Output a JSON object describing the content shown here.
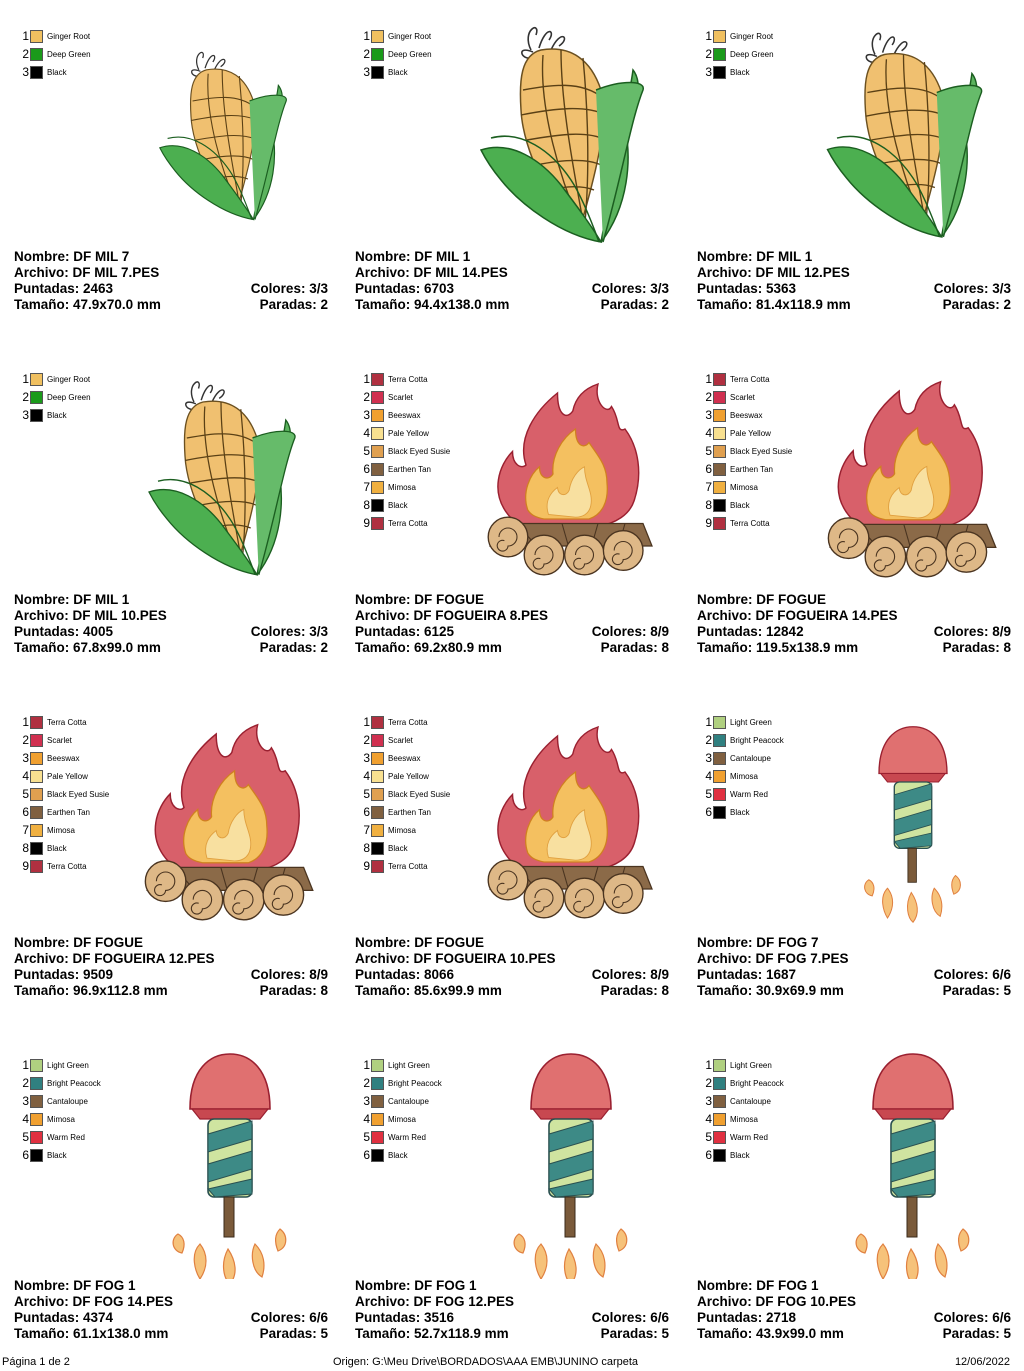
{
  "labels": {
    "nombre": "Nombre:",
    "archivo": "Archivo:",
    "puntadas": "Puntadas:",
    "tamano": "Tamaño:",
    "colores": "Colores:",
    "paradas": "Paradas:"
  },
  "designs": [
    {
      "type": "corn",
      "nombre": "DF MIL 7",
      "archivo": "DF MIL 7.PES",
      "puntadas": "2463",
      "colores": "3/3",
      "tamano": "47.9x70.0 mm",
      "paradas": "2",
      "scale": 0.78,
      "swatches": [
        {
          "n": "1",
          "name": "Ginger Root",
          "color": "#f0c060"
        },
        {
          "n": "2",
          "name": "Deep Green",
          "color": "#1a9a1a"
        },
        {
          "n": "3",
          "name": "Black",
          "color": "#000000"
        }
      ]
    },
    {
      "type": "corn",
      "nombre": "DF MIL 1",
      "archivo": "DF MIL 14.PES",
      "puntadas": "6703",
      "colores": "3/3",
      "tamano": "94.4x138.0 mm",
      "paradas": "2",
      "scale": 1.0,
      "swatches": [
        {
          "n": "1",
          "name": "Ginger Root",
          "color": "#f0c060"
        },
        {
          "n": "2",
          "name": "Deep Green",
          "color": "#1a9a1a"
        },
        {
          "n": "3",
          "name": "Black",
          "color": "#000000"
        }
      ]
    },
    {
      "type": "corn",
      "nombre": "DF MIL 1",
      "archivo": "DF MIL 12.PES",
      "puntadas": "5363",
      "colores": "3/3",
      "tamano": "81.4x118.9 mm",
      "paradas": "2",
      "scale": 0.95,
      "swatches": [
        {
          "n": "1",
          "name": "Ginger Root",
          "color": "#f0c060"
        },
        {
          "n": "2",
          "name": "Deep Green",
          "color": "#1a9a1a"
        },
        {
          "n": "3",
          "name": "Black",
          "color": "#000000"
        }
      ]
    },
    {
      "type": "corn",
      "nombre": "DF MIL 1",
      "archivo": "DF MIL 10.PES",
      "puntadas": "4005",
      "colores": "3/3",
      "tamano": "67.8x99.0 mm",
      "paradas": "2",
      "scale": 0.9,
      "swatches": [
        {
          "n": "1",
          "name": "Ginger Root",
          "color": "#f0c060"
        },
        {
          "n": "2",
          "name": "Deep Green",
          "color": "#1a9a1a"
        },
        {
          "n": "3",
          "name": "Black",
          "color": "#000000"
        }
      ]
    },
    {
      "type": "fire",
      "nombre": "DF FOGUE",
      "archivo": "DF FOGUEIRA 8.PES",
      "puntadas": "6125",
      "colores": "8/9",
      "tamano": "69.2x80.9 mm",
      "paradas": "8",
      "scale": 0.9,
      "swatches": [
        {
          "n": "1",
          "name": "Terra Cotta",
          "color": "#b03040"
        },
        {
          "n": "2",
          "name": "Scarlet",
          "color": "#d03050"
        },
        {
          "n": "3",
          "name": "Beeswax",
          "color": "#f0a030"
        },
        {
          "n": "4",
          "name": "Pale Yellow",
          "color": "#f8e090"
        },
        {
          "n": "5",
          "name": "Black Eyed Susie",
          "color": "#e0a050"
        },
        {
          "n": "6",
          "name": "Earthen Tan",
          "color": "#806040"
        },
        {
          "n": "7",
          "name": "Mimosa",
          "color": "#f0b040"
        },
        {
          "n": "8",
          "name": "Black",
          "color": "#000000"
        },
        {
          "n": "9",
          "name": "Terra Cotta",
          "color": "#b03040"
        }
      ]
    },
    {
      "type": "fire",
      "nombre": "DF FOGUE",
      "archivo": "DF FOGUEIRA 14.PES",
      "puntadas": "12842",
      "colores": "8/9",
      "tamano": "119.5x138.9 mm",
      "paradas": "8",
      "scale": 0.92,
      "swatches": [
        {
          "n": "1",
          "name": "Terra Cotta",
          "color": "#b03040"
        },
        {
          "n": "2",
          "name": "Scarlet",
          "color": "#d03050"
        },
        {
          "n": "3",
          "name": "Beeswax",
          "color": "#f0a030"
        },
        {
          "n": "4",
          "name": "Pale Yellow",
          "color": "#f8e090"
        },
        {
          "n": "5",
          "name": "Black Eyed Susie",
          "color": "#e0a050"
        },
        {
          "n": "6",
          "name": "Earthen Tan",
          "color": "#806040"
        },
        {
          "n": "7",
          "name": "Mimosa",
          "color": "#f0b040"
        },
        {
          "n": "8",
          "name": "Black",
          "color": "#000000"
        },
        {
          "n": "9",
          "name": "Terra Cotta",
          "color": "#b03040"
        }
      ]
    },
    {
      "type": "fire",
      "nombre": "DF FOGUE",
      "archivo": "DF FOGUEIRA 12.PES",
      "puntadas": "9509",
      "colores": "8/9",
      "tamano": "96.9x112.8 mm",
      "paradas": "8",
      "scale": 0.92,
      "swatches": [
        {
          "n": "1",
          "name": "Terra Cotta",
          "color": "#b03040"
        },
        {
          "n": "2",
          "name": "Scarlet",
          "color": "#d03050"
        },
        {
          "n": "3",
          "name": "Beeswax",
          "color": "#f0a030"
        },
        {
          "n": "4",
          "name": "Pale Yellow",
          "color": "#f8e090"
        },
        {
          "n": "5",
          "name": "Black Eyed Susie",
          "color": "#e0a050"
        },
        {
          "n": "6",
          "name": "Earthen Tan",
          "color": "#806040"
        },
        {
          "n": "7",
          "name": "Mimosa",
          "color": "#f0b040"
        },
        {
          "n": "8",
          "name": "Black",
          "color": "#000000"
        },
        {
          "n": "9",
          "name": "Terra Cotta",
          "color": "#b03040"
        }
      ]
    },
    {
      "type": "fire",
      "nombre": "DF FOGUE",
      "archivo": "DF FOGUEIRA 10.PES",
      "puntadas": "8066",
      "colores": "8/9",
      "tamano": "85.6x99.9 mm",
      "paradas": "8",
      "scale": 0.9,
      "swatches": [
        {
          "n": "1",
          "name": "Terra Cotta",
          "color": "#b03040"
        },
        {
          "n": "2",
          "name": "Scarlet",
          "color": "#d03050"
        },
        {
          "n": "3",
          "name": "Beeswax",
          "color": "#f0a030"
        },
        {
          "n": "4",
          "name": "Pale Yellow",
          "color": "#f8e090"
        },
        {
          "n": "5",
          "name": "Black Eyed Susie",
          "color": "#e0a050"
        },
        {
          "n": "6",
          "name": "Earthen Tan",
          "color": "#806040"
        },
        {
          "n": "7",
          "name": "Mimosa",
          "color": "#f0b040"
        },
        {
          "n": "8",
          "name": "Black",
          "color": "#000000"
        },
        {
          "n": "9",
          "name": "Terra Cotta",
          "color": "#b03040"
        }
      ]
    },
    {
      "type": "rocket",
      "nombre": "DF FOG 7",
      "archivo": "DF FOG 7.PES",
      "puntadas": "1687",
      "colores": "6/6",
      "tamano": "30.9x69.9 mm",
      "paradas": "5",
      "scale": 0.85,
      "swatches": [
        {
          "n": "1",
          "name": "Light Green",
          "color": "#b0d080"
        },
        {
          "n": "2",
          "name": "Bright Peacock",
          "color": "#308080"
        },
        {
          "n": "3",
          "name": "Cantaloupe",
          "color": "#806040"
        },
        {
          "n": "4",
          "name": "Mimosa",
          "color": "#f0a030"
        },
        {
          "n": "5",
          "name": "Warm Red",
          "color": "#e03040"
        },
        {
          "n": "6",
          "name": "Black",
          "color": "#000000"
        }
      ]
    },
    {
      "type": "rocket",
      "nombre": "DF FOG 1",
      "archivo": "DF FOG 14.PES",
      "puntadas": "4374",
      "colores": "6/6",
      "tamano": "61.1x138.0 mm",
      "paradas": "5",
      "scale": 1.0,
      "swatches": [
        {
          "n": "1",
          "name": "Light Green",
          "color": "#b0d080"
        },
        {
          "n": "2",
          "name": "Bright Peacock",
          "color": "#308080"
        },
        {
          "n": "3",
          "name": "Cantaloupe",
          "color": "#806040"
        },
        {
          "n": "4",
          "name": "Mimosa",
          "color": "#f0a030"
        },
        {
          "n": "5",
          "name": "Warm Red",
          "color": "#e03040"
        },
        {
          "n": "6",
          "name": "Black",
          "color": "#000000"
        }
      ]
    },
    {
      "type": "rocket",
      "nombre": "DF FOG 1",
      "archivo": "DF FOG 12.PES",
      "puntadas": "3516",
      "colores": "6/6",
      "tamano": "52.7x118.9 mm",
      "paradas": "5",
      "scale": 1.0,
      "swatches": [
        {
          "n": "1",
          "name": "Light Green",
          "color": "#b0d080"
        },
        {
          "n": "2",
          "name": "Bright Peacock",
          "color": "#308080"
        },
        {
          "n": "3",
          "name": "Cantaloupe",
          "color": "#806040"
        },
        {
          "n": "4",
          "name": "Mimosa",
          "color": "#f0a030"
        },
        {
          "n": "5",
          "name": "Warm Red",
          "color": "#e03040"
        },
        {
          "n": "6",
          "name": "Black",
          "color": "#000000"
        }
      ]
    },
    {
      "type": "rocket",
      "nombre": "DF FOG 1",
      "archivo": "DF FOG 10.PES",
      "puntadas": "2718",
      "colores": "6/6",
      "tamano": "43.9x99.0 mm",
      "paradas": "5",
      "scale": 1.0,
      "swatches": [
        {
          "n": "1",
          "name": "Light Green",
          "color": "#b0d080"
        },
        {
          "n": "2",
          "name": "Bright Peacock",
          "color": "#308080"
        },
        {
          "n": "3",
          "name": "Cantaloupe",
          "color": "#806040"
        },
        {
          "n": "4",
          "name": "Mimosa",
          "color": "#f0a030"
        },
        {
          "n": "5",
          "name": "Warm Red",
          "color": "#e03040"
        },
        {
          "n": "6",
          "name": "Black",
          "color": "#000000"
        }
      ]
    }
  ],
  "footer": {
    "page": "Página 1 de 2",
    "origin": "Origen: G:\\Meu Drive\\BORDADOS\\AAA EMB\\JUNINO carpeta",
    "date": "12/06/2022"
  }
}
